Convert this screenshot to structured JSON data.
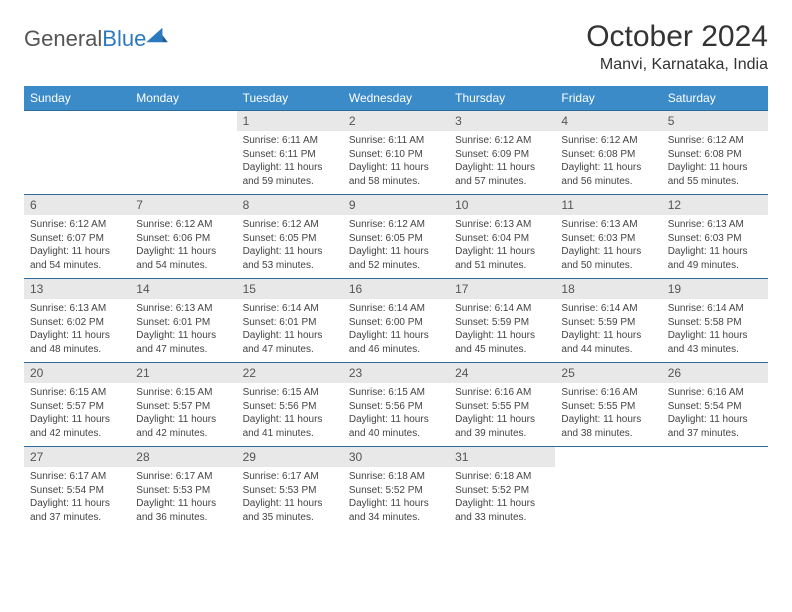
{
  "logo": {
    "word1": "General",
    "word2": "Blue",
    "icon_color": "#2b7ac0",
    "text_color": "#555"
  },
  "header": {
    "month_title": "October 2024",
    "location": "Manvi, Karnataka, India"
  },
  "colors": {
    "header_bg": "#3b8bc9",
    "header_border": "#2b6a9a",
    "daynum_bg": "#e8e8e8",
    "page_bg": "#ffffff",
    "text": "#444"
  },
  "weekdays": [
    "Sunday",
    "Monday",
    "Tuesday",
    "Wednesday",
    "Thursday",
    "Friday",
    "Saturday"
  ],
  "weeks": [
    [
      null,
      null,
      {
        "n": "1",
        "sunrise": "6:11 AM",
        "sunset": "6:11 PM",
        "daylight": "11 hours and 59 minutes."
      },
      {
        "n": "2",
        "sunrise": "6:11 AM",
        "sunset": "6:10 PM",
        "daylight": "11 hours and 58 minutes."
      },
      {
        "n": "3",
        "sunrise": "6:12 AM",
        "sunset": "6:09 PM",
        "daylight": "11 hours and 57 minutes."
      },
      {
        "n": "4",
        "sunrise": "6:12 AM",
        "sunset": "6:08 PM",
        "daylight": "11 hours and 56 minutes."
      },
      {
        "n": "5",
        "sunrise": "6:12 AM",
        "sunset": "6:08 PM",
        "daylight": "11 hours and 55 minutes."
      }
    ],
    [
      {
        "n": "6",
        "sunrise": "6:12 AM",
        "sunset": "6:07 PM",
        "daylight": "11 hours and 54 minutes."
      },
      {
        "n": "7",
        "sunrise": "6:12 AM",
        "sunset": "6:06 PM",
        "daylight": "11 hours and 54 minutes."
      },
      {
        "n": "8",
        "sunrise": "6:12 AM",
        "sunset": "6:05 PM",
        "daylight": "11 hours and 53 minutes."
      },
      {
        "n": "9",
        "sunrise": "6:12 AM",
        "sunset": "6:05 PM",
        "daylight": "11 hours and 52 minutes."
      },
      {
        "n": "10",
        "sunrise": "6:13 AM",
        "sunset": "6:04 PM",
        "daylight": "11 hours and 51 minutes."
      },
      {
        "n": "11",
        "sunrise": "6:13 AM",
        "sunset": "6:03 PM",
        "daylight": "11 hours and 50 minutes."
      },
      {
        "n": "12",
        "sunrise": "6:13 AM",
        "sunset": "6:03 PM",
        "daylight": "11 hours and 49 minutes."
      }
    ],
    [
      {
        "n": "13",
        "sunrise": "6:13 AM",
        "sunset": "6:02 PM",
        "daylight": "11 hours and 48 minutes."
      },
      {
        "n": "14",
        "sunrise": "6:13 AM",
        "sunset": "6:01 PM",
        "daylight": "11 hours and 47 minutes."
      },
      {
        "n": "15",
        "sunrise": "6:14 AM",
        "sunset": "6:01 PM",
        "daylight": "11 hours and 47 minutes."
      },
      {
        "n": "16",
        "sunrise": "6:14 AM",
        "sunset": "6:00 PM",
        "daylight": "11 hours and 46 minutes."
      },
      {
        "n": "17",
        "sunrise": "6:14 AM",
        "sunset": "5:59 PM",
        "daylight": "11 hours and 45 minutes."
      },
      {
        "n": "18",
        "sunrise": "6:14 AM",
        "sunset": "5:59 PM",
        "daylight": "11 hours and 44 minutes."
      },
      {
        "n": "19",
        "sunrise": "6:14 AM",
        "sunset": "5:58 PM",
        "daylight": "11 hours and 43 minutes."
      }
    ],
    [
      {
        "n": "20",
        "sunrise": "6:15 AM",
        "sunset": "5:57 PM",
        "daylight": "11 hours and 42 minutes."
      },
      {
        "n": "21",
        "sunrise": "6:15 AM",
        "sunset": "5:57 PM",
        "daylight": "11 hours and 42 minutes."
      },
      {
        "n": "22",
        "sunrise": "6:15 AM",
        "sunset": "5:56 PM",
        "daylight": "11 hours and 41 minutes."
      },
      {
        "n": "23",
        "sunrise": "6:15 AM",
        "sunset": "5:56 PM",
        "daylight": "11 hours and 40 minutes."
      },
      {
        "n": "24",
        "sunrise": "6:16 AM",
        "sunset": "5:55 PM",
        "daylight": "11 hours and 39 minutes."
      },
      {
        "n": "25",
        "sunrise": "6:16 AM",
        "sunset": "5:55 PM",
        "daylight": "11 hours and 38 minutes."
      },
      {
        "n": "26",
        "sunrise": "6:16 AM",
        "sunset": "5:54 PM",
        "daylight": "11 hours and 37 minutes."
      }
    ],
    [
      {
        "n": "27",
        "sunrise": "6:17 AM",
        "sunset": "5:54 PM",
        "daylight": "11 hours and 37 minutes."
      },
      {
        "n": "28",
        "sunrise": "6:17 AM",
        "sunset": "5:53 PM",
        "daylight": "11 hours and 36 minutes."
      },
      {
        "n": "29",
        "sunrise": "6:17 AM",
        "sunset": "5:53 PM",
        "daylight": "11 hours and 35 minutes."
      },
      {
        "n": "30",
        "sunrise": "6:18 AM",
        "sunset": "5:52 PM",
        "daylight": "11 hours and 34 minutes."
      },
      {
        "n": "31",
        "sunrise": "6:18 AM",
        "sunset": "5:52 PM",
        "daylight": "11 hours and 33 minutes."
      },
      null,
      null
    ]
  ],
  "labels": {
    "sunrise": "Sunrise:",
    "sunset": "Sunset:",
    "daylight": "Daylight:"
  }
}
